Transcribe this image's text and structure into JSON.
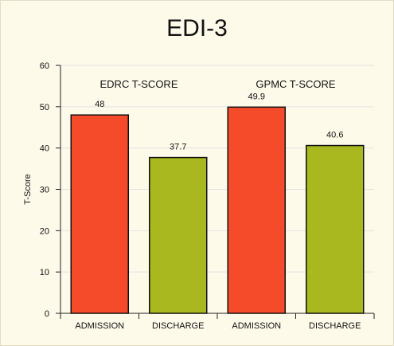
{
  "chart_data": {
    "type": "bar",
    "title": "EDI-3",
    "ylabel": "T-Score",
    "ylim": [
      0,
      60
    ],
    "yticks": [
      0,
      10,
      20,
      30,
      40,
      50,
      60
    ],
    "grid": true,
    "groups": [
      {
        "name": "EDRC T-SCORE",
        "categories": [
          "ADMISSION",
          "DISCHARGE"
        ],
        "values": [
          48,
          37.7
        ],
        "labels": [
          "48",
          "37.7"
        ]
      },
      {
        "name": "GPMC T-SCORE",
        "categories": [
          "ADMISSION",
          "DISCHARGE"
        ],
        "values": [
          49.9,
          40.6
        ],
        "labels": [
          "49.9",
          "40.6"
        ]
      }
    ],
    "colors": {
      "ADMISSION": "#f64b2a",
      "DISCHARGE": "#a8b81e",
      "grid": "#e2e2e2",
      "axis": "#222222",
      "bar_stroke": "#111111"
    }
  }
}
